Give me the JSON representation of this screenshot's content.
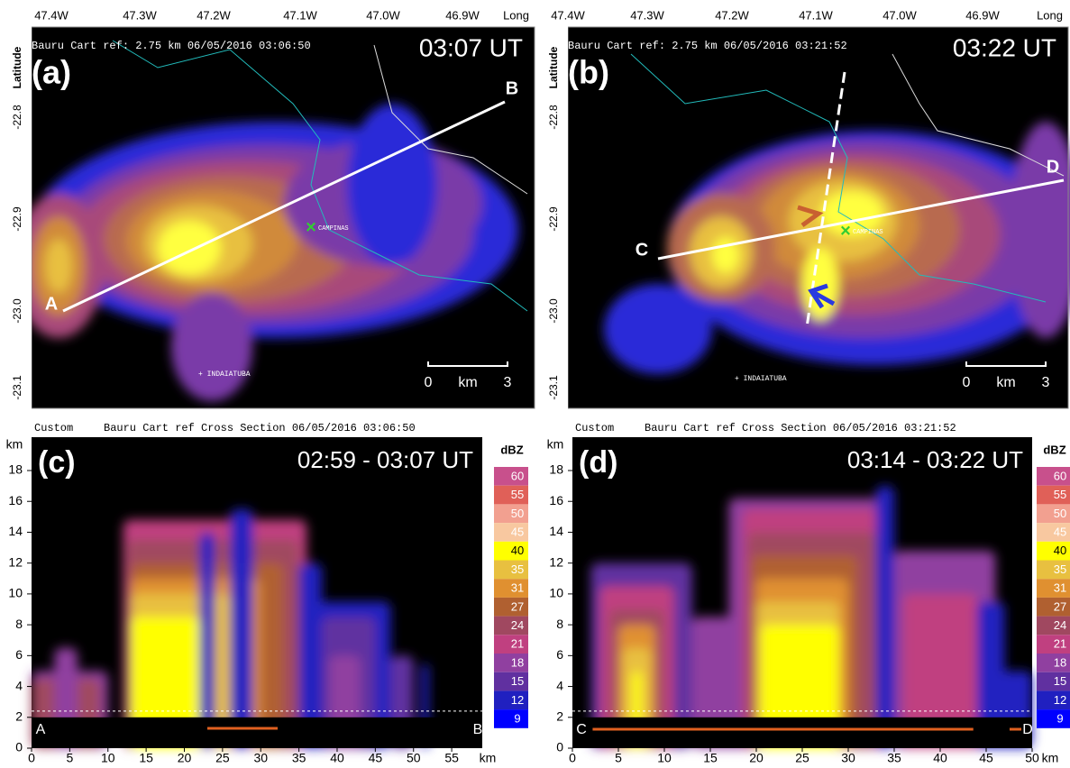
{
  "maps": [
    {
      "letter": "(a)",
      "time": "03:07 UT",
      "header": "Bauru Cart ref: 2.75 km 06/05/2016 03:06:50",
      "top_ticks": [
        "47.4W",
        "47.3W",
        "47.2W",
        "47.1W",
        "47.0W",
        "46.9W"
      ],
      "top_axis_label": "Long",
      "left_axis_label": "Latitude",
      "left_ticks": [
        "-22.8",
        "-22.9",
        "-23.0",
        "-23.1"
      ],
      "city_labels": [
        "CAMPINAS",
        "INDAIATUBA"
      ],
      "point_labels": [
        "A",
        "B"
      ],
      "scale_labels": [
        "0",
        "km",
        "3"
      ]
    },
    {
      "letter": "(b)",
      "time": "03:22 UT",
      "header": "Bauru Cart ref: 2.75 km 06/05/2016 03:21:52",
      "top_ticks": [
        "47.4W",
        "47.3W",
        "47.2W",
        "47.1W",
        "47.0W",
        "46.9W"
      ],
      "top_axis_label": "Long",
      "left_axis_label": "Latitude",
      "left_ticks": [
        "-22.8",
        "-22.9",
        "-23.0",
        "-23.1"
      ],
      "city_labels": [
        "CAMPINAS",
        "INDAIATUBA"
      ],
      "point_labels": [
        "C",
        "D"
      ],
      "scale_labels": [
        "0",
        "km",
        "3"
      ]
    }
  ],
  "sections": [
    {
      "letter": "(c)",
      "time": "02:59 - 03:07 UT",
      "mode": "Custom",
      "header": "Bauru Cart ref Cross Section 06/05/2016 03:06:50",
      "y_unit": "km",
      "y_ticks": [
        "18",
        "16",
        "14",
        "12",
        "10",
        "8",
        "6",
        "4",
        "2",
        "0"
      ],
      "x_ticks": [
        "0",
        "5",
        "10",
        "15",
        "20",
        "25",
        "30",
        "35",
        "40",
        "45",
        "50",
        "55"
      ],
      "x_unit": "km",
      "endpoints": [
        "A",
        "B"
      ],
      "colorbar_title": "dBZ",
      "colorbar_labels": [
        "60",
        "55",
        "50",
        "45",
        "40",
        "35",
        "31",
        "27",
        "24",
        "21",
        "18",
        "15",
        "12",
        "9"
      ]
    },
    {
      "letter": "(d)",
      "time": "03:14 - 03:22 UT",
      "mode": "Custom",
      "header": "Bauru Cart ref Cross Section 06/05/2016 03:21:52",
      "y_unit": "km",
      "y_ticks": [
        "18",
        "16",
        "14",
        "12",
        "10",
        "8",
        "6",
        "4",
        "2",
        "0"
      ],
      "x_ticks": [
        "0",
        "5",
        "10",
        "15",
        "20",
        "25",
        "30",
        "35",
        "40",
        "45",
        "50"
      ],
      "x_unit": "km",
      "endpoints": [
        "C",
        "D"
      ],
      "colorbar_title": "dBZ",
      "colorbar_labels": [
        "60",
        "55",
        "50",
        "45",
        "40",
        "35",
        "31",
        "27",
        "24",
        "21",
        "18",
        "15",
        "12",
        "9"
      ]
    }
  ]
}
